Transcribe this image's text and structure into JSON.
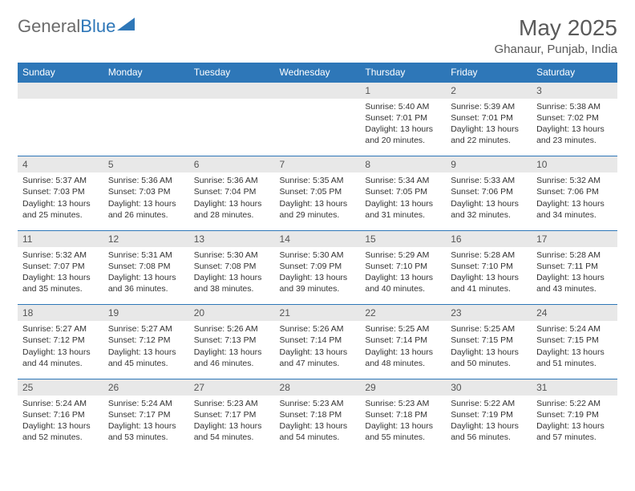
{
  "logo": {
    "text1": "General",
    "text2": "Blue"
  },
  "title": "May 2025",
  "location": "Ghanaur, Punjab, India",
  "colors": {
    "header_bg": "#2e77b8",
    "header_text": "#ffffff",
    "daynum_bg": "#e8e8e8",
    "border": "#2e77b8",
    "text": "#333333",
    "title_text": "#5a5a5a"
  },
  "weekdays": [
    "Sunday",
    "Monday",
    "Tuesday",
    "Wednesday",
    "Thursday",
    "Friday",
    "Saturday"
  ],
  "weeks": [
    [
      null,
      null,
      null,
      null,
      {
        "n": "1",
        "sr": "5:40 AM",
        "ss": "7:01 PM",
        "dl": "13 hours and 20 minutes."
      },
      {
        "n": "2",
        "sr": "5:39 AM",
        "ss": "7:01 PM",
        "dl": "13 hours and 22 minutes."
      },
      {
        "n": "3",
        "sr": "5:38 AM",
        "ss": "7:02 PM",
        "dl": "13 hours and 23 minutes."
      }
    ],
    [
      {
        "n": "4",
        "sr": "5:37 AM",
        "ss": "7:03 PM",
        "dl": "13 hours and 25 minutes."
      },
      {
        "n": "5",
        "sr": "5:36 AM",
        "ss": "7:03 PM",
        "dl": "13 hours and 26 minutes."
      },
      {
        "n": "6",
        "sr": "5:36 AM",
        "ss": "7:04 PM",
        "dl": "13 hours and 28 minutes."
      },
      {
        "n": "7",
        "sr": "5:35 AM",
        "ss": "7:05 PM",
        "dl": "13 hours and 29 minutes."
      },
      {
        "n": "8",
        "sr": "5:34 AM",
        "ss": "7:05 PM",
        "dl": "13 hours and 31 minutes."
      },
      {
        "n": "9",
        "sr": "5:33 AM",
        "ss": "7:06 PM",
        "dl": "13 hours and 32 minutes."
      },
      {
        "n": "10",
        "sr": "5:32 AM",
        "ss": "7:06 PM",
        "dl": "13 hours and 34 minutes."
      }
    ],
    [
      {
        "n": "11",
        "sr": "5:32 AM",
        "ss": "7:07 PM",
        "dl": "13 hours and 35 minutes."
      },
      {
        "n": "12",
        "sr": "5:31 AM",
        "ss": "7:08 PM",
        "dl": "13 hours and 36 minutes."
      },
      {
        "n": "13",
        "sr": "5:30 AM",
        "ss": "7:08 PM",
        "dl": "13 hours and 38 minutes."
      },
      {
        "n": "14",
        "sr": "5:30 AM",
        "ss": "7:09 PM",
        "dl": "13 hours and 39 minutes."
      },
      {
        "n": "15",
        "sr": "5:29 AM",
        "ss": "7:10 PM",
        "dl": "13 hours and 40 minutes."
      },
      {
        "n": "16",
        "sr": "5:28 AM",
        "ss": "7:10 PM",
        "dl": "13 hours and 41 minutes."
      },
      {
        "n": "17",
        "sr": "5:28 AM",
        "ss": "7:11 PM",
        "dl": "13 hours and 43 minutes."
      }
    ],
    [
      {
        "n": "18",
        "sr": "5:27 AM",
        "ss": "7:12 PM",
        "dl": "13 hours and 44 minutes."
      },
      {
        "n": "19",
        "sr": "5:27 AM",
        "ss": "7:12 PM",
        "dl": "13 hours and 45 minutes."
      },
      {
        "n": "20",
        "sr": "5:26 AM",
        "ss": "7:13 PM",
        "dl": "13 hours and 46 minutes."
      },
      {
        "n": "21",
        "sr": "5:26 AM",
        "ss": "7:14 PM",
        "dl": "13 hours and 47 minutes."
      },
      {
        "n": "22",
        "sr": "5:25 AM",
        "ss": "7:14 PM",
        "dl": "13 hours and 48 minutes."
      },
      {
        "n": "23",
        "sr": "5:25 AM",
        "ss": "7:15 PM",
        "dl": "13 hours and 50 minutes."
      },
      {
        "n": "24",
        "sr": "5:24 AM",
        "ss": "7:15 PM",
        "dl": "13 hours and 51 minutes."
      }
    ],
    [
      {
        "n": "25",
        "sr": "5:24 AM",
        "ss": "7:16 PM",
        "dl": "13 hours and 52 minutes."
      },
      {
        "n": "26",
        "sr": "5:24 AM",
        "ss": "7:17 PM",
        "dl": "13 hours and 53 minutes."
      },
      {
        "n": "27",
        "sr": "5:23 AM",
        "ss": "7:17 PM",
        "dl": "13 hours and 54 minutes."
      },
      {
        "n": "28",
        "sr": "5:23 AM",
        "ss": "7:18 PM",
        "dl": "13 hours and 54 minutes."
      },
      {
        "n": "29",
        "sr": "5:23 AM",
        "ss": "7:18 PM",
        "dl": "13 hours and 55 minutes."
      },
      {
        "n": "30",
        "sr": "5:22 AM",
        "ss": "7:19 PM",
        "dl": "13 hours and 56 minutes."
      },
      {
        "n": "31",
        "sr": "5:22 AM",
        "ss": "7:19 PM",
        "dl": "13 hours and 57 minutes."
      }
    ]
  ],
  "labels": {
    "sunrise": "Sunrise: ",
    "sunset": "Sunset: ",
    "daylight": "Daylight: "
  }
}
